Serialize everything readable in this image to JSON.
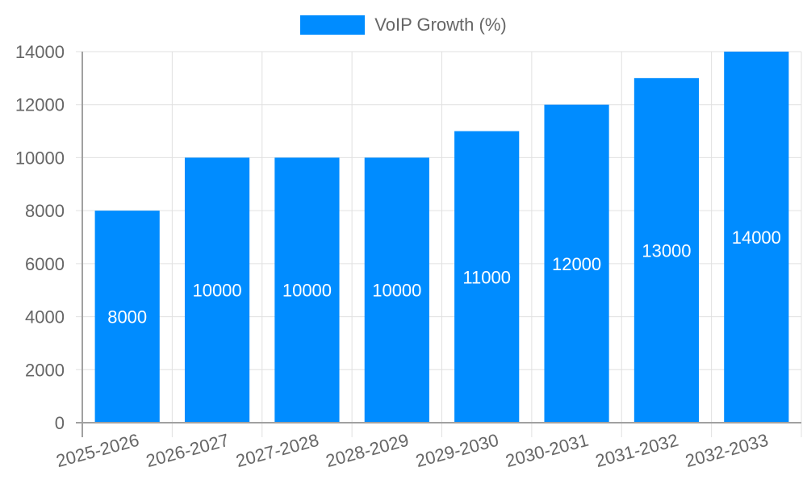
{
  "chart_data": {
    "type": "bar",
    "title": "",
    "xlabel": "",
    "ylabel": "",
    "categories": [
      "2025-2026",
      "2026-2027",
      "2027-2028",
      "2028-2029",
      "2029-2030",
      "2030-2031",
      "2031-2032",
      "2032-2033"
    ],
    "series": [
      {
        "name": "VoIP Growth (%)",
        "values": [
          8000,
          10000,
          10000,
          10000,
          11000,
          12000,
          13000,
          14000
        ],
        "color": "#008cff"
      }
    ],
    "ylim": [
      0,
      14000
    ],
    "yticks": [
      0,
      2000,
      4000,
      6000,
      8000,
      10000,
      12000,
      14000
    ],
    "grid": true,
    "legend_position": "top",
    "data_labels": true
  },
  "legend": {
    "label": "VoIP Growth (%)",
    "color": "#008cff"
  },
  "colors": {
    "bar": "#008cff",
    "grid": "#e0e0e0",
    "axis": "#a0a0a0",
    "tick_text": "#666666",
    "data_label": "#ffffff"
  }
}
